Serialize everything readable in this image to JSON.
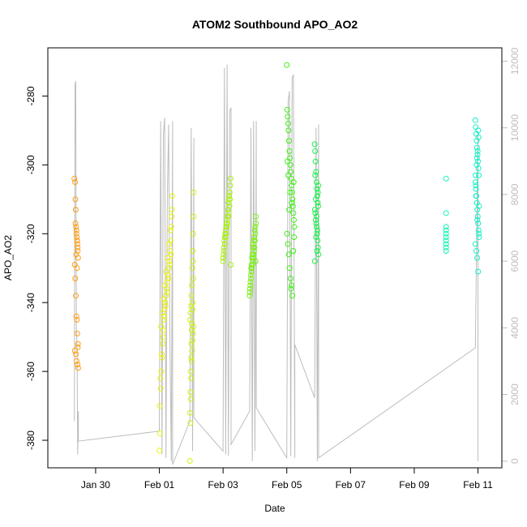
{
  "chart_data": {
    "type": "scatter",
    "title": "ATOM2 Southbound APO_AO2",
    "xlabel": "Date",
    "ylabel": "APO_AO2",
    "x_axis": {
      "type": "date",
      "range": [
        "2016-01-28T12:00",
        "2016-02-11T18:00"
      ],
      "ticks": [
        {
          "value": "2016-01-30",
          "label": "Jan 30"
        },
        {
          "value": "2016-02-01",
          "label": "Feb 01"
        },
        {
          "value": "2016-02-03",
          "label": "Feb 03"
        },
        {
          "value": "2016-02-05",
          "label": "Feb 05"
        },
        {
          "value": "2016-02-07",
          "label": "Feb 07"
        },
        {
          "value": "2016-02-09",
          "label": "Feb 09"
        },
        {
          "value": "2016-02-11",
          "label": "Feb 11"
        }
      ]
    },
    "y_axis": {
      "range": [
        -388,
        -266
      ],
      "ticks": [
        {
          "value": -280,
          "label": "-280"
        },
        {
          "value": -300,
          "label": "-300"
        },
        {
          "value": -320,
          "label": "-320"
        },
        {
          "value": -340,
          "label": "-340"
        },
        {
          "value": -360,
          "label": "-360"
        },
        {
          "value": -380,
          "label": "-380"
        }
      ]
    },
    "y2_axis": {
      "color": "#bdbdbd",
      "range": [
        -200,
        12400
      ],
      "ticks": [
        {
          "value": 0,
          "label": "0"
        },
        {
          "value": 2000,
          "label": "2000"
        },
        {
          "value": 4000,
          "label": "4000"
        },
        {
          "value": 6000,
          "label": "6000"
        },
        {
          "value": 8000,
          "label": "8000"
        },
        {
          "value": 10000,
          "label": "10000"
        },
        {
          "value": 12000,
          "label": "12000"
        }
      ]
    },
    "grid": false,
    "legend": "none",
    "line_series": {
      "axis": "y2",
      "color": "#bdbdbd",
      "x": [
        "2016-01-29T08:00",
        "2016-01-29T08:30",
        "2016-01-29T09:00",
        "2016-01-29T09:30",
        "2016-01-29T10:00",
        "2016-01-29T10:30",
        "2016-01-29T11:00",
        "2016-01-29T11:00",
        "2016-02-01T00:00",
        "2016-02-01T01:00",
        "2016-02-01T02:00",
        "2016-02-01T03:00",
        "2016-02-01T04:00",
        "2016-02-01T05:00",
        "2016-02-01T06:00",
        "2016-02-01T07:00",
        "2016-02-01T08:00",
        "2016-02-01T09:00",
        "2016-02-01T10:00",
        "2016-02-01T10:00",
        "2016-02-01T23:00",
        "2016-02-02T00:00",
        "2016-02-02T01:00",
        "2016-02-02T02:00",
        "2016-02-02T02:00",
        "2016-02-03T00:00",
        "2016-02-03T01:00",
        "2016-02-03T02:00",
        "2016-02-03T03:00",
        "2016-02-03T04:00",
        "2016-02-03T05:00",
        "2016-02-03T06:00",
        "2016-02-03T06:00",
        "2016-02-03T20:00",
        "2016-02-03T21:00",
        "2016-02-03T22:00",
        "2016-02-03T23:00",
        "2016-02-04T00:00",
        "2016-02-04T01:00",
        "2016-02-04T01:00",
        "2016-02-05T00:00",
        "2016-02-05T01:00",
        "2016-02-05T02:00",
        "2016-02-05T03:00",
        "2016-02-05T04:00",
        "2016-02-05T05:00",
        "2016-02-05T06:00",
        "2016-02-05T06:00",
        "2016-02-05T21:00",
        "2016-02-05T22:00",
        "2016-02-05T23:00",
        "2016-02-06T00:00",
        "2016-02-06T00:00",
        "2016-02-10T22:00",
        "2016-02-11T00:00",
        "2016-02-11T00:00"
      ],
      "y": [
        1200,
        11300,
        11400,
        4000,
        3500,
        200,
        1500,
        600,
        900,
        10200,
        200,
        9800,
        10300,
        100,
        8000,
        10100,
        3500,
        0,
        10200,
        -100,
        1200,
        10000,
        300,
        9700,
        1300,
        300,
        11800,
        200,
        11900,
        150,
        10500,
        10600,
        500,
        1500,
        10000,
        0,
        10200,
        300,
        10200,
        1600,
        100,
        10800,
        11100,
        150,
        11500,
        11600,
        100,
        3500,
        1900,
        10000,
        0,
        10100,
        100,
        3400,
        9900,
        0
      ]
    },
    "series": [
      {
        "color": "#ff9e16",
        "x": [
          "2016-01-29T08:00",
          "2016-01-29T08:30",
          "2016-01-29T08:45",
          "2016-01-29T09:00",
          "2016-01-29T09:15",
          "2016-01-29T09:30",
          "2016-01-29T09:45",
          "2016-01-29T10:00",
          "2016-01-29T10:15",
          "2016-01-29T10:30",
          "2016-01-29T10:45",
          "2016-01-29T08:15",
          "2016-01-29T08:40",
          "2016-01-29T09:05",
          "2016-01-29T09:25",
          "2016-01-29T09:50",
          "2016-01-29T10:10",
          "2016-01-29T10:35",
          "2016-01-29T08:20",
          "2016-01-29T09:10",
          "2016-01-29T09:40",
          "2016-01-29T10:20",
          "2016-01-29T10:50",
          "2016-01-29T08:50",
          "2016-01-29T09:35",
          "2016-01-29T10:05",
          "2016-01-29T10:25",
          "2016-01-29T09:20",
          "2016-01-29T09:55",
          "2016-01-29T10:40"
        ],
        "y": [
          -304,
          -305,
          -310,
          -313,
          -318,
          -320,
          -321,
          -322,
          -323,
          -325,
          -327,
          -329,
          -333,
          -338,
          -344,
          -345,
          -349,
          -353,
          -354,
          -355,
          -357,
          -358,
          -359,
          -317,
          -319,
          -322,
          -324,
          -326,
          -330,
          -352
        ]
      },
      {
        "color": "#e8f212",
        "x": [
          "2016-02-01T00:00",
          "2016-02-01T00:30",
          "2016-02-01T01:00",
          "2016-02-01T01:30",
          "2016-02-01T02:00",
          "2016-02-01T02:30",
          "2016-02-01T03:00",
          "2016-02-01T03:30",
          "2016-02-01T04:00",
          "2016-02-01T04:30",
          "2016-02-01T05:00",
          "2016-02-01T05:30",
          "2016-02-01T06:00",
          "2016-02-01T06:30",
          "2016-02-01T07:00",
          "2016-02-01T07:30",
          "2016-02-01T08:00",
          "2016-02-01T08:30",
          "2016-02-01T09:00",
          "2016-02-01T09:30",
          "2016-02-01T01:15",
          "2016-02-01T02:15",
          "2016-02-01T03:15",
          "2016-02-01T04:15",
          "2016-02-01T05:15",
          "2016-02-01T06:15",
          "2016-02-01T07:15",
          "2016-02-01T08:15",
          "2016-02-01T00:45",
          "2016-02-01T02:45",
          "2016-02-01T04:45",
          "2016-02-01T06:45",
          "2016-02-01T08:45",
          "2016-02-01T01:45",
          "2016-02-01T03:45",
          "2016-02-01T05:45",
          "2016-02-01T07:45",
          "2016-02-01T09:15",
          "2016-02-01T09:45",
          "2016-02-01T00:15"
        ],
        "y": [
          -383,
          -378,
          -365,
          -360,
          -356,
          -352,
          -348,
          -345,
          -342,
          -340,
          -338,
          -336,
          -334,
          -332,
          -330,
          -328,
          -325,
          -322,
          -318,
          -313,
          -347,
          -343,
          -339,
          -335,
          -331,
          -327,
          -323,
          -319,
          -362,
          -350,
          -341,
          -333,
          -326,
          -355,
          -344,
          -337,
          -329,
          -315,
          -309,
          -370
        ]
      },
      {
        "color": "#d2f212",
        "x": [
          "2016-02-01T23:00",
          "2016-02-01T23:20",
          "2016-02-01T23:40",
          "2016-02-02T00:00",
          "2016-02-02T00:20",
          "2016-02-02T00:40",
          "2016-02-02T01:00",
          "2016-02-02T01:20",
          "2016-02-02T01:40",
          "2016-02-01T23:10",
          "2016-02-01T23:30",
          "2016-02-01T23:50",
          "2016-02-02T00:10",
          "2016-02-02T00:30",
          "2016-02-02T00:50",
          "2016-02-02T01:10",
          "2016-02-02T01:30",
          "2016-02-02T01:50",
          "2016-02-01T23:05",
          "2016-02-01T23:35",
          "2016-02-02T00:05",
          "2016-02-02T00:35",
          "2016-02-02T01:05",
          "2016-02-02T01:35",
          "2016-02-01T23:25",
          "2016-02-01T23:55",
          "2016-02-02T00:25",
          "2016-02-02T00:55",
          "2016-02-02T01:25",
          "2016-02-02T01:55"
        ],
        "y": [
          -386,
          -375,
          -368,
          -362,
          -357,
          -354,
          -351,
          -349,
          -347,
          -345,
          -343,
          -341,
          -338,
          -335,
          -330,
          -325,
          -320,
          -315,
          -372,
          -360,
          -352,
          -346,
          -340,
          -333,
          -366,
          -356,
          -348,
          -342,
          -328,
          -308
        ]
      },
      {
        "color": "#a8f212",
        "x": [
          "2016-02-03T00:00",
          "2016-02-03T00:20",
          "2016-02-03T00:40",
          "2016-02-03T01:00",
          "2016-02-03T01:20",
          "2016-02-03T01:40",
          "2016-02-03T02:00",
          "2016-02-03T02:20",
          "2016-02-03T02:40",
          "2016-02-03T03:00",
          "2016-02-03T03:20",
          "2016-02-03T03:40",
          "2016-02-03T04:00",
          "2016-02-03T04:20",
          "2016-02-03T04:40",
          "2016-02-03T05:00",
          "2016-02-03T05:20",
          "2016-02-03T05:40",
          "2016-02-03T00:10",
          "2016-02-03T01:10",
          "2016-02-03T02:10",
          "2016-02-03T03:10",
          "2016-02-03T04:10",
          "2016-02-03T05:10",
          "2016-02-03T00:50",
          "2016-02-03T01:50",
          "2016-02-03T02:50",
          "2016-02-03T03:50",
          "2016-02-03T04:50",
          "2016-02-03T05:50"
        ],
        "y": [
          -328,
          -326,
          -324,
          -322,
          -321,
          -320,
          -319,
          -318,
          -317,
          -316,
          -315,
          -313,
          -311,
          -310,
          -309,
          -308,
          -306,
          -304,
          -327,
          -323,
          -320,
          -317,
          -314,
          -310,
          -325,
          -321,
          -318,
          -315,
          -312,
          -329
        ]
      },
      {
        "color": "#7cf212",
        "x": [
          "2016-02-03T20:00",
          "2016-02-03T20:20",
          "2016-02-03T20:40",
          "2016-02-03T21:00",
          "2016-02-03T21:20",
          "2016-02-03T21:40",
          "2016-02-03T22:00",
          "2016-02-03T22:20",
          "2016-02-03T22:40",
          "2016-02-03T23:00",
          "2016-02-03T23:20",
          "2016-02-03T23:40",
          "2016-02-04T00:00",
          "2016-02-04T00:20",
          "2016-02-04T00:40",
          "2016-02-03T20:10",
          "2016-02-03T20:50",
          "2016-02-03T21:30",
          "2016-02-03T22:10",
          "2016-02-03T22:50",
          "2016-02-03T23:30",
          "2016-02-04T00:10",
          "2016-02-04T00:50",
          "2016-02-03T20:30",
          "2016-02-03T21:10",
          "2016-02-03T21:50",
          "2016-02-03T22:30",
          "2016-02-03T23:10",
          "2016-02-03T23:50",
          "2016-02-04T00:30"
        ],
        "y": [
          -338,
          -336,
          -334,
          -333,
          -331,
          -330,
          -329,
          -328,
          -327,
          -326,
          -325,
          -324,
          -322,
          -320,
          -315,
          -337,
          -332,
          -329,
          -326,
          -323,
          -321,
          -318,
          -317,
          -335,
          -330,
          -327,
          -324,
          -322,
          -319,
          -328
        ]
      },
      {
        "color": "#3cf212",
        "x": [
          "2016-02-05T00:00",
          "2016-02-05T00:20",
          "2016-02-05T00:40",
          "2016-02-05T01:00",
          "2016-02-05T01:20",
          "2016-02-05T01:40",
          "2016-02-05T02:00",
          "2016-02-05T02:20",
          "2016-02-05T02:40",
          "2016-02-05T03:00",
          "2016-02-05T03:20",
          "2016-02-05T03:40",
          "2016-02-05T04:00",
          "2016-02-05T04:20",
          "2016-02-05T04:40",
          "2016-02-05T05:00",
          "2016-02-05T05:20",
          "2016-02-05T05:40",
          "2016-02-05T00:10",
          "2016-02-05T00:50",
          "2016-02-05T01:30",
          "2016-02-05T02:10",
          "2016-02-05T02:50",
          "2016-02-05T03:30",
          "2016-02-05T04:10",
          "2016-02-05T04:50",
          "2016-02-05T05:30",
          "2016-02-05T01:10",
          "2016-02-05T02:30",
          "2016-02-05T03:50",
          "2016-02-05T05:10",
          "2016-02-05T00:30",
          "2016-02-05T01:50",
          "2016-02-05T03:10"
        ],
        "y": [
          -271,
          -284,
          -286,
          -288,
          -290,
          -293,
          -296,
          -298,
          -300,
          -302,
          -304,
          -306,
          -308,
          -310,
          -312,
          -314,
          -316,
          -318,
          -320,
          -323,
          -326,
          -330,
          -333,
          -335,
          -338,
          -325,
          -321,
          -303,
          -308,
          -311,
          -305,
          -299,
          -313,
          -336
        ]
      },
      {
        "color": "#18f24a",
        "x": [
          "2016-02-05T21:00",
          "2016-02-05T21:20",
          "2016-02-05T21:40",
          "2016-02-05T22:00",
          "2016-02-05T22:20",
          "2016-02-05T22:40",
          "2016-02-05T23:00",
          "2016-02-05T23:20",
          "2016-02-05T23:40",
          "2016-02-05T21:10",
          "2016-02-05T21:30",
          "2016-02-05T21:50",
          "2016-02-05T22:10",
          "2016-02-05T22:30",
          "2016-02-05T22:50",
          "2016-02-05T23:10",
          "2016-02-05T23:30",
          "2016-02-05T23:50",
          "2016-02-05T21:05",
          "2016-02-05T21:45",
          "2016-02-05T22:25",
          "2016-02-05T23:05",
          "2016-02-05T23:45",
          "2016-02-05T21:25",
          "2016-02-05T22:05",
          "2016-02-05T22:45",
          "2016-02-05T23:25"
        ],
        "y": [
          -294,
          -296,
          -299,
          -302,
          -305,
          -307,
          -309,
          -311,
          -312,
          -313,
          -314,
          -316,
          -317,
          -318,
          -320,
          -322,
          -324,
          -326,
          -328,
          -310,
          -315,
          -319,
          -306,
          -303,
          -321,
          -325,
          -308
        ]
      },
      {
        "color": "#14f2b4",
        "x": [
          "2016-02-10T00:00",
          "2016-02-10T00:00",
          "2016-02-10T00:00",
          "2016-02-10T00:00",
          "2016-02-10T00:00",
          "2016-02-10T00:00",
          "2016-02-10T00:00",
          "2016-02-10T00:00",
          "2016-02-10T00:00",
          "2016-02-10T00:00"
        ],
        "y": [
          -304,
          -314,
          -319,
          -321,
          -322,
          -323,
          -324,
          -325,
          -320,
          -318
        ]
      },
      {
        "color": "#14f2c8",
        "x": [
          "2016-02-10T22:00",
          "2016-02-10T22:20",
          "2016-02-10T22:40",
          "2016-02-10T23:00",
          "2016-02-10T23:20",
          "2016-02-10T23:40",
          "2016-02-11T00:00",
          "2016-02-11T00:20",
          "2016-02-11T00:40",
          "2016-02-10T22:10",
          "2016-02-10T22:30",
          "2016-02-10T22:50",
          "2016-02-10T23:10",
          "2016-02-10T23:30",
          "2016-02-10T23:50",
          "2016-02-11T00:10",
          "2016-02-11T00:30",
          "2016-02-11T00:50",
          "2016-02-10T22:05",
          "2016-02-10T22:45",
          "2016-02-10T23:25",
          "2016-02-11T00:05",
          "2016-02-11T00:45",
          "2016-02-10T22:25",
          "2016-02-10T23:05",
          "2016-02-10T23:45",
          "2016-02-11T00:25",
          "2016-02-10T22:35",
          "2016-02-10T23:35",
          "2016-02-11T00:35",
          "2016-02-10T22:15",
          "2016-02-10T23:15",
          "2016-02-11T00:15"
        ],
        "y": [
          -287,
          -289,
          -291,
          -293,
          -295,
          -297,
          -299,
          -301,
          -303,
          -305,
          -307,
          -309,
          -311,
          -313,
          -315,
          -317,
          -319,
          -321,
          -323,
          -325,
          -327,
          -331,
          -312,
          -306,
          -300,
          -296,
          -292,
          -309,
          -316,
          -320,
          -303,
          -298,
          -290
        ]
      }
    ]
  }
}
